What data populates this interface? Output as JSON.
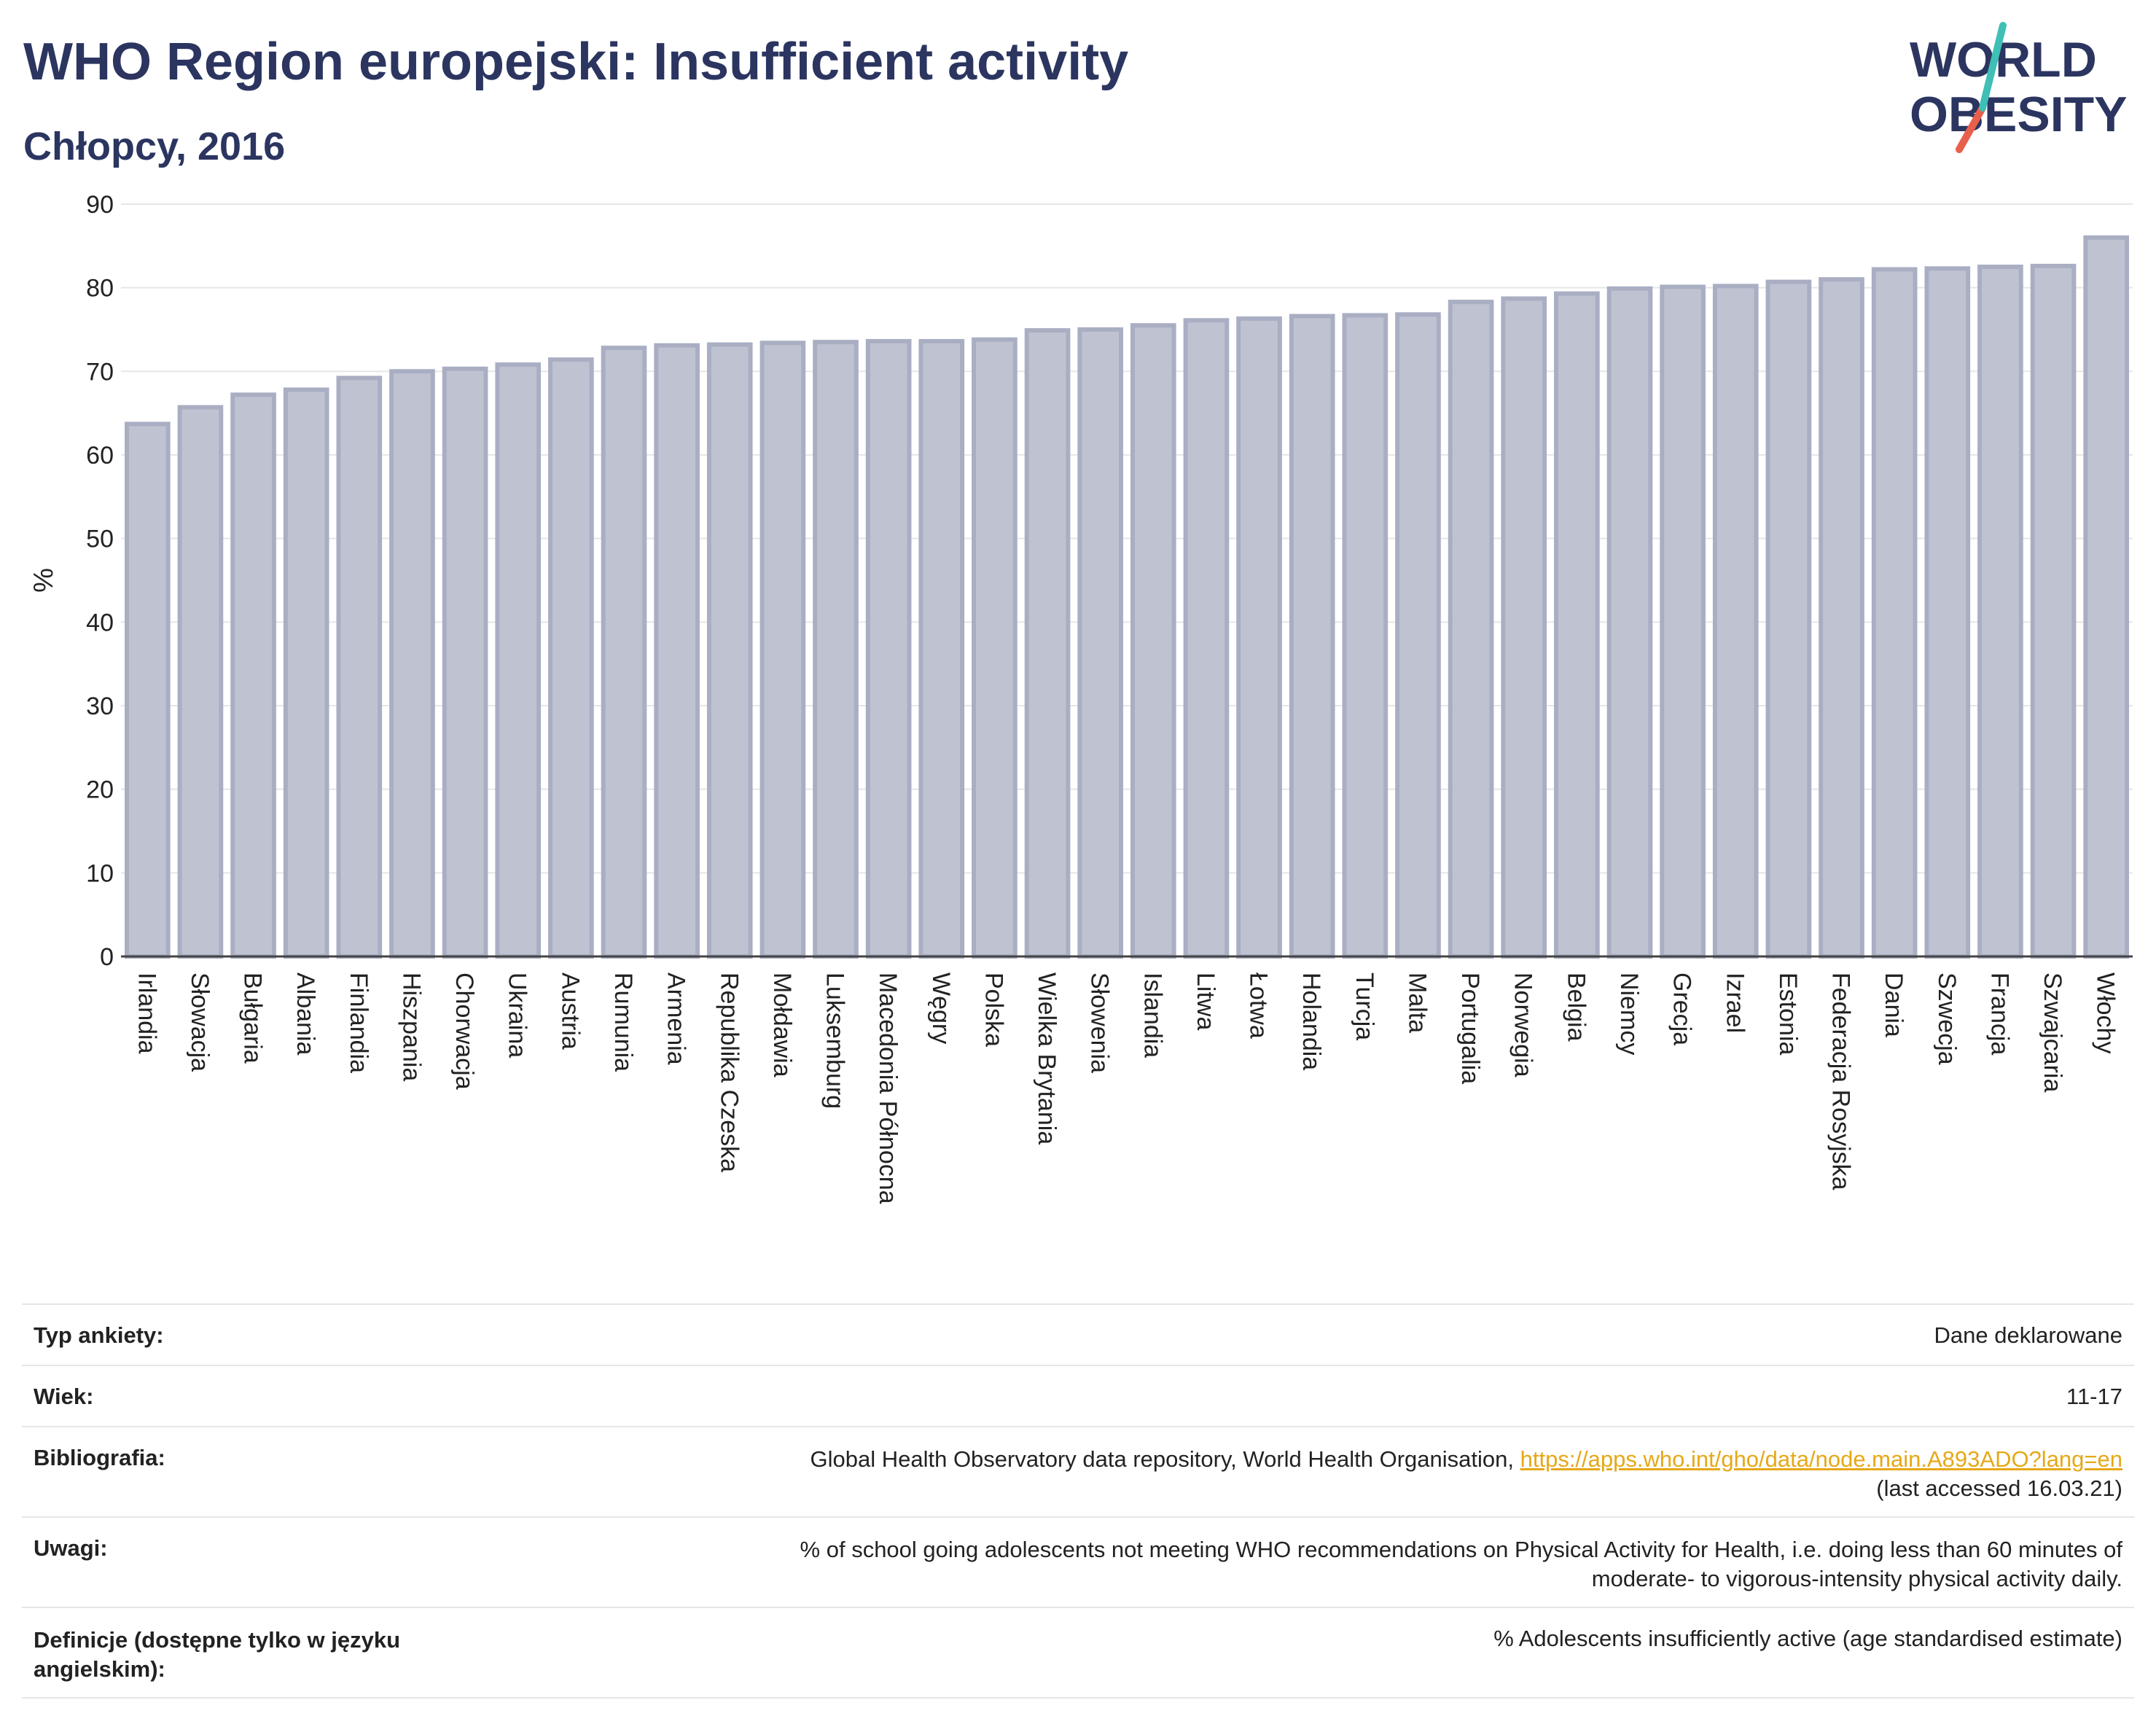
{
  "header": {
    "title": "WHO Region europejski: Insufficient activity",
    "subtitle": "Chłopcy, 2016"
  },
  "logo": {
    "line1": "WORLD",
    "line2": "OBESITY",
    "text_color": "#2b3560",
    "slash_colors": [
      "#3fbfb5",
      "#e8604c"
    ]
  },
  "chart_data": {
    "type": "bar",
    "ylabel": "%",
    "ylim": [
      0,
      90
    ],
    "yticks": [
      0,
      10,
      20,
      30,
      40,
      50,
      60,
      70,
      80,
      90
    ],
    "grid": true,
    "bar_color": "#bfc3d1",
    "bar_edge_color": "#a9aec3",
    "categories": [
      "Irlandia",
      "Słowacja",
      "Bułgaria",
      "Albania",
      "Finlandia",
      "Hiszpania",
      "Chorwacja",
      "Ukraina",
      "Austria",
      "Rumunia",
      "Armenia",
      "Republika Czeska",
      "Mołdawia",
      "Luksemburg",
      "Macedonia Północna",
      "Węgry",
      "Polska",
      "Wielka Brytania",
      "Słowenia",
      "Islandia",
      "Litwa",
      "Łotwa",
      "Holandia",
      "Turcja",
      "Malta",
      "Portugalia",
      "Norwegia",
      "Belgia",
      "Niemcy",
      "Grecja",
      "Izrael",
      "Estonia",
      "Federacja Rosyjska",
      "Dania",
      "Szwecja",
      "Francja",
      "Szwajcaria",
      "Włochy"
    ],
    "values": [
      63.7,
      65.7,
      67.2,
      67.8,
      69.2,
      70.0,
      70.3,
      70.8,
      71.4,
      72.8,
      73.1,
      73.2,
      73.4,
      73.5,
      73.6,
      73.6,
      73.8,
      74.9,
      75.0,
      75.5,
      76.1,
      76.3,
      76.6,
      76.7,
      76.8,
      78.3,
      78.7,
      79.3,
      79.9,
      80.1,
      80.2,
      80.7,
      81.0,
      82.2,
      82.3,
      82.5,
      82.6,
      86.0
    ]
  },
  "info": {
    "survey_type": {
      "label": "Typ ankiety:",
      "value": "Dane deklarowane"
    },
    "age": {
      "label": "Wiek:",
      "value": "11-17"
    },
    "bibliography": {
      "label": "Bibliografia:",
      "text": "Global Health Observatory data repository, World Health Organisation,",
      "link": "https://apps.who.int/gho/data/node.main.A893ADO?lang=en",
      "accessed": "(last accessed 16.03.21)"
    },
    "notes": {
      "label": "Uwagi:",
      "line1": "% of school going adolescents not meeting WHO recommendations on Physical Activity for Health, i.e. doing less than 60 minutes of",
      "line2": "moderate- to vigorous-intensity physical activity daily."
    },
    "definitions": {
      "label_line1": "Definicje (dostępne tylko w języku",
      "label_line2": "angielskim):",
      "value": "% Adolescents insufficiently active (age standardised estimate)"
    }
  }
}
